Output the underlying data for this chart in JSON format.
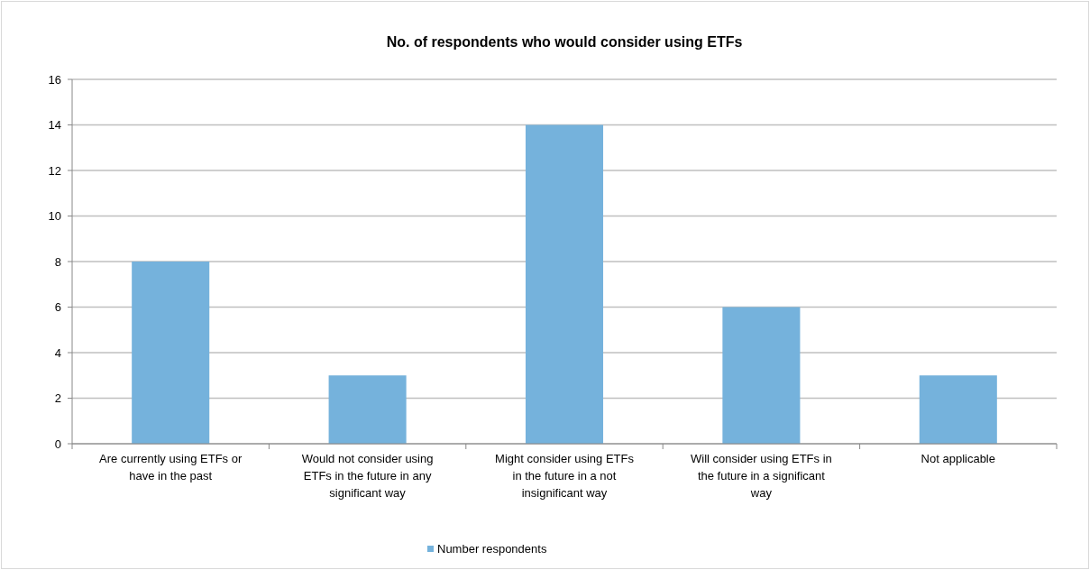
{
  "chart_data": {
    "type": "bar",
    "title": "No. of respondents who would consider using ETFs",
    "categories": [
      "Are currently using ETFs or have in the past",
      "Would not consider using ETFs in the future in any significant way",
      "Might consider using ETFs in the future in a not insignificant way",
      "Will consider using ETFs in the future in a significant way",
      "Not applicable"
    ],
    "series": [
      {
        "name": "Number respondents",
        "color": "#75b2dc",
        "values": [
          8,
          3,
          14,
          6,
          3
        ]
      }
    ],
    "ylim": [
      0,
      16
    ],
    "yticks": [
      0,
      2,
      4,
      6,
      8,
      10,
      12,
      14,
      16
    ],
    "grid": "y",
    "legend": "bottom"
  }
}
